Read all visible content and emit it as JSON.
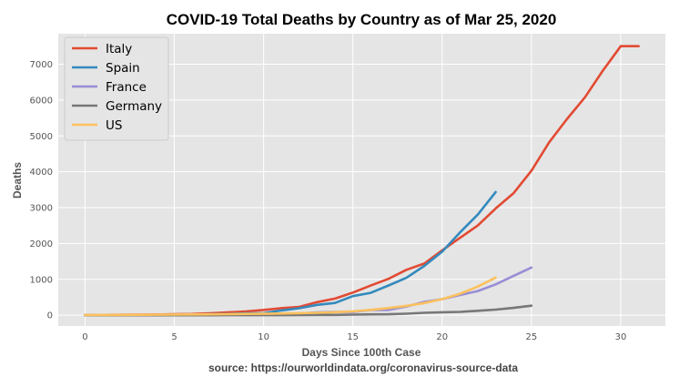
{
  "chart_data": {
    "type": "line",
    "title": "COVID-19 Total Deaths by Country as of Mar 25, 2020",
    "xlabel": "Days Since 100th Case",
    "ylabel": "Deaths",
    "source": "source: https://ourworldindata.org/coronavirus-source-data",
    "xlim": [
      -1.5,
      32.5
    ],
    "ylim": [
      -300,
      7850
    ],
    "xticks": [
      0,
      5,
      10,
      15,
      20,
      25,
      30
    ],
    "yticks": [
      0,
      1000,
      2000,
      3000,
      4000,
      5000,
      6000,
      7000
    ],
    "grid": true,
    "legend_position": "upper-left",
    "background": "#e5e5e5",
    "series": [
      {
        "name": "Italy",
        "color": "#e24a33",
        "x": [
          0,
          1,
          2,
          3,
          4,
          5,
          6,
          7,
          8,
          9,
          10,
          11,
          12,
          13,
          14,
          15,
          16,
          17,
          18,
          19,
          20,
          21,
          22,
          23,
          24,
          25,
          26,
          27,
          28,
          29,
          30,
          31
        ],
        "y": [
          7,
          10,
          12,
          17,
          21,
          29,
          34,
          52,
          79,
          107,
          148,
          197,
          233,
          366,
          463,
          631,
          827,
          1016,
          1266,
          1441,
          1809,
          2158,
          2503,
          2978,
          3405,
          4032,
          4825,
          5476,
          6077,
          6820,
          7503,
          7503
        ]
      },
      {
        "name": "Spain",
        "color": "#348abd",
        "x": [
          0,
          1,
          2,
          3,
          4,
          5,
          6,
          7,
          8,
          9,
          10,
          11,
          12,
          13,
          14,
          15,
          16,
          17,
          18,
          19,
          20,
          21,
          22,
          23
        ],
        "y": [
          0,
          1,
          2,
          3,
          5,
          10,
          17,
          28,
          35,
          54,
          55,
          133,
          195,
          289,
          342,
          533,
          623,
          830,
          1043,
          1375,
          1772,
          2311,
          2808,
          3434
        ]
      },
      {
        "name": "France",
        "color": "#988ed5",
        "x": [
          0,
          1,
          2,
          3,
          4,
          5,
          6,
          7,
          8,
          9,
          10,
          11,
          12,
          13,
          14,
          15,
          16,
          17,
          18,
          19,
          20,
          21,
          22,
          23,
          24,
          25
        ],
        "y": [
          2,
          2,
          3,
          4,
          4,
          6,
          9,
          11,
          19,
          19,
          33,
          48,
          48,
          79,
          91,
          91,
          148,
          148,
          244,
          372,
          450,
          562,
          674,
          860,
          1100,
          1331
        ]
      },
      {
        "name": "Germany",
        "color": "#777777",
        "x": [
          0,
          1,
          2,
          3,
          4,
          5,
          6,
          7,
          8,
          9,
          10,
          11,
          12,
          13,
          14,
          15,
          16,
          17,
          18,
          19,
          20,
          21,
          22,
          23,
          24,
          25
        ],
        "y": [
          0,
          0,
          0,
          0,
          0,
          0,
          0,
          0,
          2,
          2,
          3,
          3,
          7,
          9,
          11,
          17,
          24,
          28,
          44,
          67,
          84,
          94,
          123,
          157,
          206,
          267
        ]
      },
      {
        "name": "US",
        "color": "#fbc15e",
        "x": [
          0,
          1,
          2,
          3,
          4,
          5,
          6,
          7,
          8,
          9,
          10,
          11,
          12,
          13,
          14,
          15,
          16,
          17,
          18,
          19,
          20,
          21,
          22,
          23
        ],
        "y": [
          6,
          9,
          11,
          12,
          15,
          19,
          22,
          26,
          30,
          38,
          41,
          48,
          57,
          69,
          85,
          108,
          150,
          200,
          260,
          340,
          450,
          600,
          800,
          1050
        ]
      }
    ]
  }
}
